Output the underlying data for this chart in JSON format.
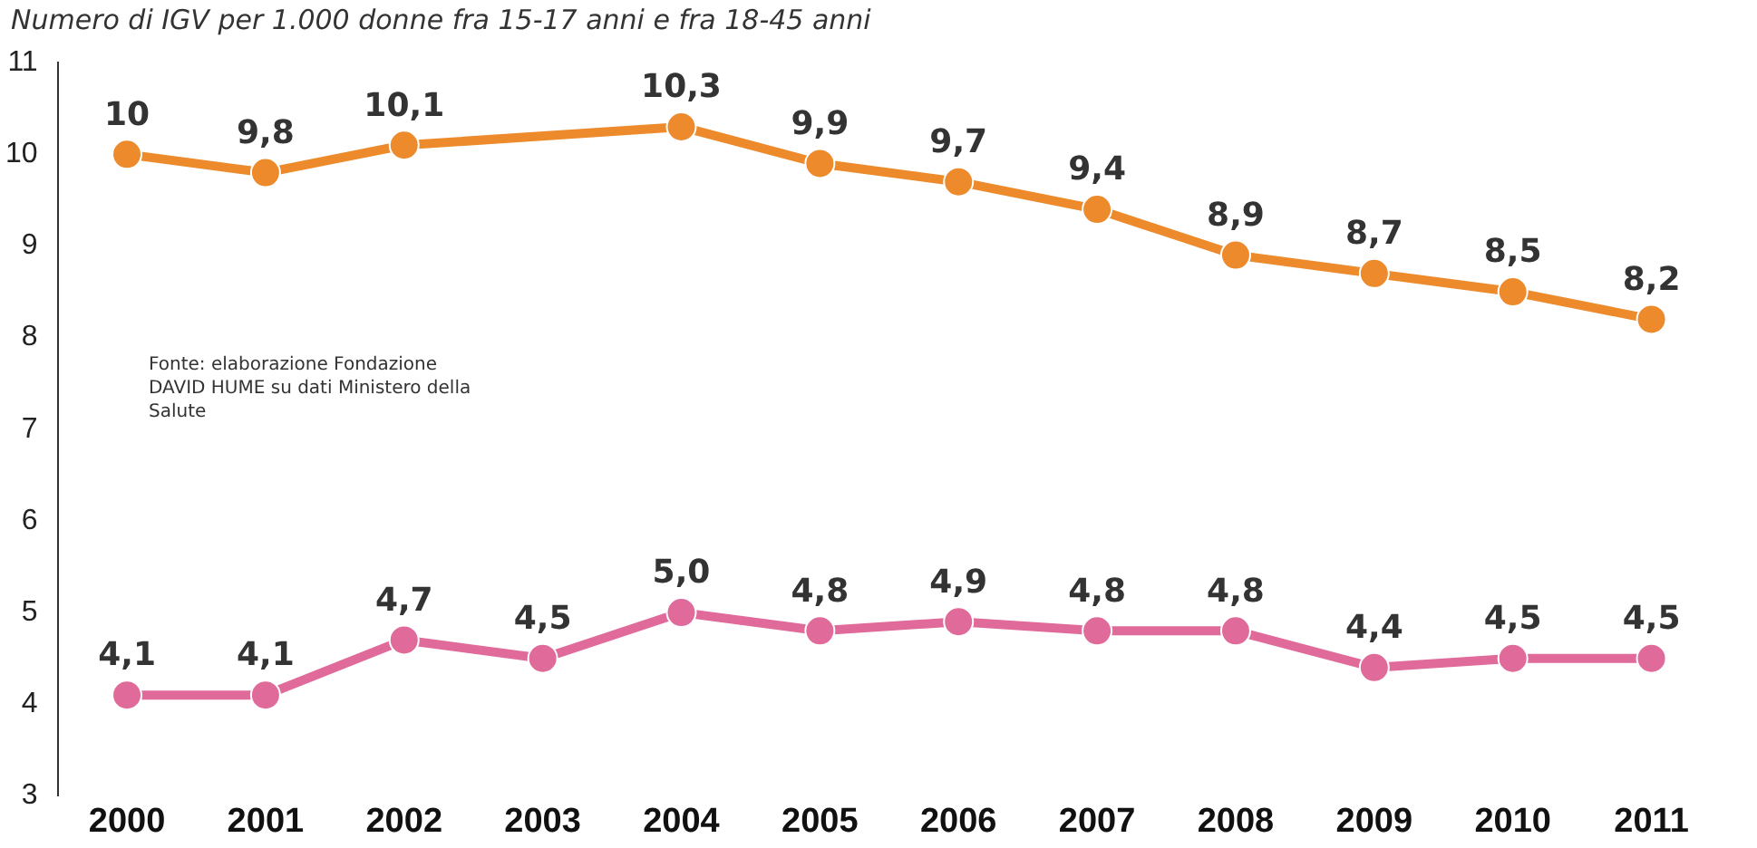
{
  "chart_data": {
    "type": "line",
    "title": "Numero di IGV per 1.000 donne fra 15-17 anni e fra 18-45 anni",
    "categories": [
      "2000",
      "2001",
      "2002",
      "2003",
      "2004",
      "2005",
      "2006",
      "2007",
      "2008",
      "2009",
      "2010",
      "2011"
    ],
    "series": [
      {
        "color": "#ec8a2c",
        "values": [
          10,
          9.8,
          10.1,
          null,
          10.3,
          9.9,
          9.7,
          9.4,
          8.9,
          8.7,
          8.5,
          8.2
        ],
        "value_labels": [
          "10",
          "9,8",
          "10,1",
          null,
          "10,3",
          "9,9",
          "9,7",
          "9,4",
          "8,9",
          "8,7",
          "8,5",
          "8,2"
        ]
      },
      {
        "color": "#e06a9a",
        "values": [
          4.1,
          4.1,
          4.7,
          4.5,
          5.0,
          4.8,
          4.9,
          4.8,
          4.8,
          4.4,
          4.5,
          4.5
        ],
        "value_labels": [
          "4,1",
          "4,1",
          "4,7",
          "4,5",
          "5,0",
          "4,8",
          "4,9",
          "4,8",
          "4,8",
          "4,4",
          "4,5",
          "4,5"
        ]
      }
    ],
    "ylim": [
      3,
      11
    ],
    "yticks": [
      3,
      4,
      5,
      6,
      7,
      8,
      9,
      10,
      11
    ],
    "grid": false,
    "legend": false,
    "marker": "circle",
    "line_style": "solid",
    "annotations": [
      "Fonte: elaborazione Fondazione DAVID HUME su dati Ministero della Salute"
    ]
  }
}
